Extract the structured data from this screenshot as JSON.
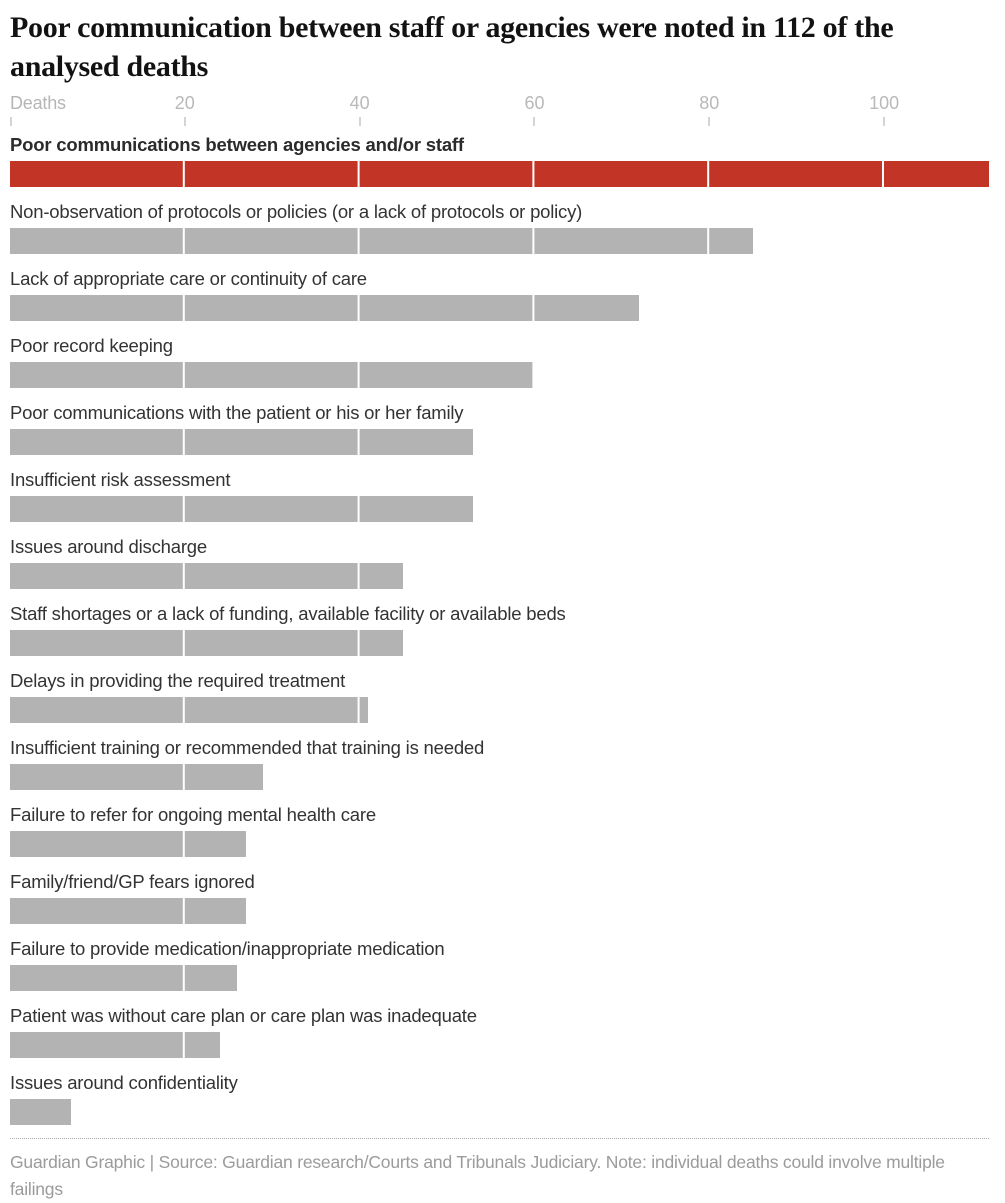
{
  "header": {
    "title": "Poor communication between staff or agencies were noted in 112 of the analysed deaths"
  },
  "axis": {
    "unit_label": "Deaths"
  },
  "chart_data": {
    "type": "bar",
    "orientation": "horizontal",
    "title": "Poor communication between staff or agencies were noted in 112 of the analysed deaths",
    "xlabel": "Deaths",
    "xlim": [
      0,
      112
    ],
    "xticks": [
      20,
      40,
      60,
      80,
      100
    ],
    "grid": "white vertical gridlines drawn over bars at each tick",
    "legend_position": "none",
    "categories": [
      "Poor communications between agencies and/or staff",
      "Non-observation of protocols or policies (or a lack of protocols or policy)",
      "Lack of appropriate care or continuity of care",
      "Poor record keeping",
      "Poor communications with the patient or his or her family",
      "Insufficient risk assessment",
      "Issues around discharge",
      "Staff shortages or a lack of funding, available facility or available beds",
      "Delays in providing the required treatment",
      "Insufficient training or recommended that training is needed",
      "Failure to refer for ongoing mental health care",
      "Family/friend/GP fears ignored",
      "Failure to provide medication/inappropriate medication",
      "Patient was without care plan or care plan was inadequate",
      "Issues around confidentiality"
    ],
    "values": [
      112,
      85,
      72,
      60,
      53,
      53,
      45,
      45,
      41,
      29,
      27,
      27,
      26,
      24,
      7
    ],
    "highlight_index": 0,
    "highlight_color": "#c23425",
    "bar_color": "#b3b3b3"
  },
  "footer": {
    "text": "Guardian Graphic | Source: Guardian research/Courts and Tribunals Judiciary. Note: individual deaths could involve multiple failings"
  },
  "colors": {
    "accent_red": "#c23425",
    "bar_gray": "#b3b3b3",
    "axis_text": "#b9b9b9",
    "label_text": "#333333",
    "title_text": "#121212",
    "footer_text": "#9b9b9b",
    "background": "#ffffff"
  }
}
